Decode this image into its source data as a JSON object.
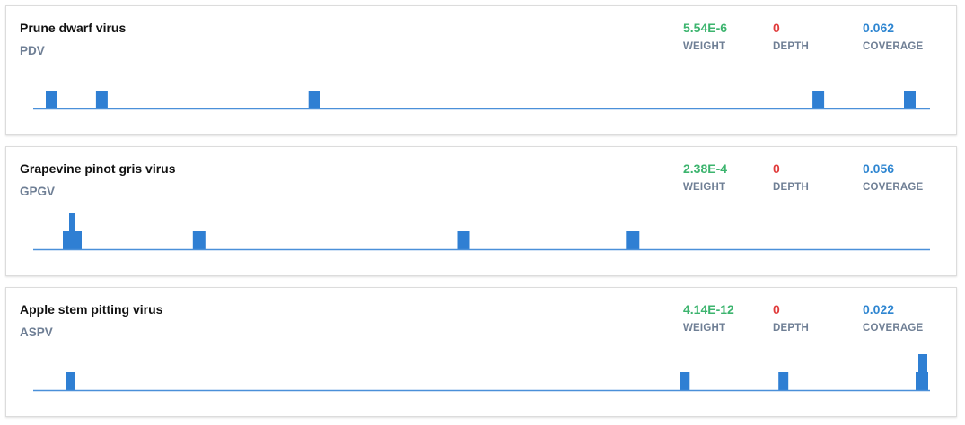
{
  "colors": {
    "weight": "#3cb46e",
    "depth": "#e03b3b",
    "coverage": "#2f86d1",
    "bar": "#2f7fd3",
    "baseline": "#4a90d9"
  },
  "metric_labels": {
    "weight": "WEIGHT",
    "depth": "DEPTH",
    "coverage": "COVERAGE"
  },
  "isolates": [
    {
      "name": "Prune dwarf virus",
      "abbreviation": "PDV",
      "weight": "5.54E-6",
      "depth": "0",
      "coverage": "0.062",
      "bars": [
        {
          "start": 0.014,
          "end": 0.026,
          "level": 1
        },
        {
          "start": 0.07,
          "end": 0.083,
          "level": 1
        },
        {
          "start": 0.307,
          "end": 0.32,
          "level": 1
        },
        {
          "start": 0.869,
          "end": 0.882,
          "level": 1
        },
        {
          "start": 0.971,
          "end": 0.984,
          "level": 1
        }
      ]
    },
    {
      "name": "Grapevine pinot gris virus",
      "abbreviation": "GPGV",
      "weight": "2.38E-4",
      "depth": "0",
      "coverage": "0.056",
      "bars": [
        {
          "start": 0.033,
          "end": 0.054,
          "level": 1
        },
        {
          "start": 0.04,
          "end": 0.047,
          "level": 2
        },
        {
          "start": 0.178,
          "end": 0.192,
          "level": 1
        },
        {
          "start": 0.473,
          "end": 0.487,
          "level": 1
        },
        {
          "start": 0.661,
          "end": 0.676,
          "level": 1
        }
      ]
    },
    {
      "name": "Apple stem pitting virus",
      "abbreviation": "ASPV",
      "weight": "4.14E-12",
      "depth": "0",
      "coverage": "0.022",
      "bars": [
        {
          "start": 0.036,
          "end": 0.047,
          "level": 1
        },
        {
          "start": 0.721,
          "end": 0.732,
          "level": 1
        },
        {
          "start": 0.831,
          "end": 0.842,
          "level": 1
        },
        {
          "start": 0.984,
          "end": 0.998,
          "level": 1
        },
        {
          "start": 0.987,
          "end": 0.997,
          "level": 2
        }
      ]
    }
  ]
}
